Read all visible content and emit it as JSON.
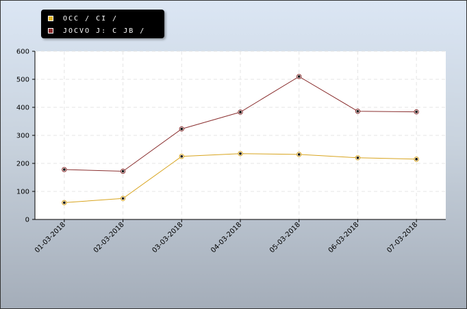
{
  "legend": {
    "items": [
      {
        "label": "OCC / CI /",
        "color": "#e4b628"
      },
      {
        "label": "JOCVO J: C JB /",
        "color": "#8b2c2c"
      }
    ]
  },
  "colors": {
    "plot_bg": "#ffffff",
    "grid": "#e4e4e4",
    "axis": "#000000",
    "series_1": "#d8a41e",
    "series_2": "#8a2f2f"
  },
  "chart_data": {
    "type": "line",
    "x": [
      "01-03-2018",
      "02-03-2018",
      "03-03-2018",
      "04-03-2018",
      "05-03-2018",
      "06-03-2018",
      "07-03-2018"
    ],
    "series": [
      {
        "name": "OCC / CI /",
        "values": [
          60,
          75,
          225,
          235,
          232,
          220,
          215
        ]
      },
      {
        "name": "JOCVO J: C JB /",
        "values": [
          178,
          172,
          323,
          383,
          510,
          386,
          384
        ]
      }
    ],
    "ylim": [
      0,
      600
    ],
    "yticks": [
      0,
      100,
      200,
      300,
      400,
      500,
      600
    ],
    "grid": true,
    "legend_position": "top-left"
  }
}
